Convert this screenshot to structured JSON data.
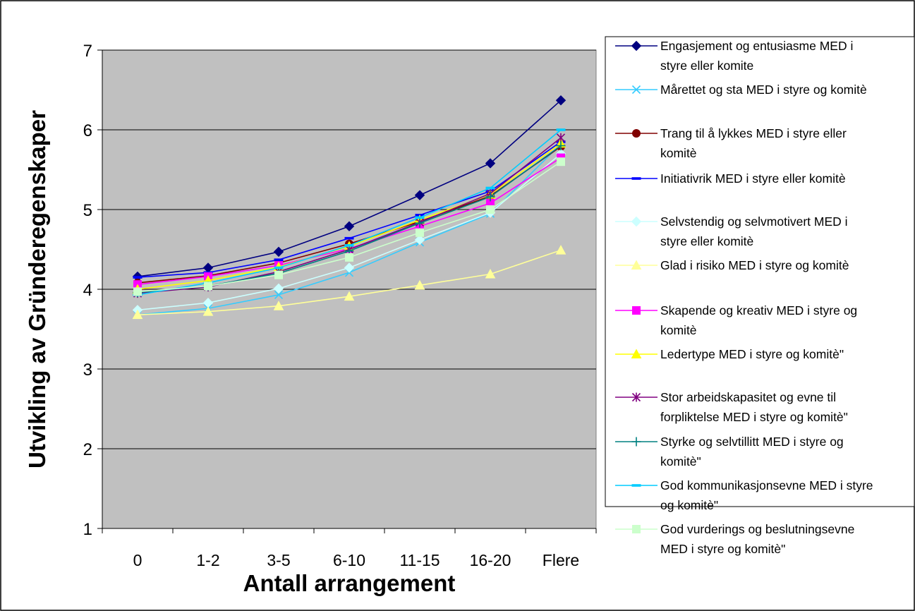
{
  "chart_data": {
    "type": "line",
    "xlabel": "Antall arrangement",
    "ylabel": "Utvikling av Gründeregenskaper",
    "categories": [
      "0",
      "1-2",
      "3-5",
      "6-10",
      "11-15",
      "16-20",
      "Flere"
    ],
    "ylim": [
      1,
      7
    ],
    "yticks": [
      1,
      2,
      3,
      4,
      5,
      6,
      7
    ],
    "grid": "horizontal",
    "plot_background": "#c0c0c0",
    "legend_position": "right",
    "series": [
      {
        "name": "Engasjement og entusiasme MED i styre eller komite",
        "label_lines": [
          "Engasjement og entusiasme MED i",
          "styre eller komite"
        ],
        "color": "#000080",
        "marker": "diamond",
        "values": [
          4.16,
          4.27,
          4.47,
          4.79,
          5.18,
          5.58,
          6.37
        ]
      },
      {
        "name": "Mårettet og sta MED i styre og komitè",
        "label_lines": [
          "Mårettet og sta MED i styre og komitè"
        ],
        "color": "#33ccff",
        "marker": "x",
        "values": [
          3.68,
          3.76,
          3.93,
          4.21,
          4.59,
          4.95,
          5.82
        ]
      },
      {
        "name": "Trang til å lykkes MED i styre eller komitè",
        "label_lines": [
          "Trang til å lykkes MED i styre eller",
          "komitè"
        ],
        "color": "#800000",
        "marker": "circle",
        "values": [
          4.08,
          4.17,
          4.33,
          4.57,
          4.85,
          5.17,
          5.79
        ]
      },
      {
        "name": "Initiativrik MED i styre eller komitè",
        "label_lines": [
          "Initiativrik MED i styre eller komitè"
        ],
        "color": "#0000ff",
        "marker": "dash",
        "values": [
          4.15,
          4.21,
          4.37,
          4.64,
          4.93,
          5.23,
          5.85
        ]
      },
      {
        "name": "Selvstendig og selvmotivert MED i styre eller komitè",
        "label_lines": [
          "Selvstendig og selvmotivert MED i",
          "styre eller komitè"
        ],
        "color": "#ccffff",
        "marker": "diamond",
        "values": [
          3.74,
          3.83,
          4.01,
          4.27,
          4.62,
          4.96,
          5.7
        ]
      },
      {
        "name": "Glad i risiko MED i styre og komitè",
        "label_lines": [
          "Glad i risiko MED i styre og komitè"
        ],
        "color": "#ffff99",
        "marker": "triangle",
        "values": [
          3.68,
          3.72,
          3.79,
          3.91,
          4.05,
          4.19,
          4.49
        ]
      },
      {
        "name": "Skapende og kreativ MED i styre og komitè",
        "label_lines": [
          "Skapende og kreativ MED i styre og",
          "komitè"
        ],
        "color": "#ff00ff",
        "marker": "square",
        "values": [
          4.06,
          4.16,
          4.3,
          4.51,
          4.79,
          5.08,
          5.65
        ]
      },
      {
        "name": "Ledertype MED i styre og komitè\"",
        "label_lines": [
          "Ledertype MED i styre og komitè\""
        ],
        "color": "#ffff00",
        "marker": "triangle",
        "values": [
          4.0,
          4.11,
          4.28,
          4.54,
          4.87,
          5.19,
          5.83
        ]
      },
      {
        "name": "Stor arbeidskapasitet og evne til forpliktelse MED i styre og komitè\"",
        "label_lines": [
          "Stor arbeidskapasitet og evne til",
          "forpliktelse MED i styre og komitè\""
        ],
        "color": "#800080",
        "marker": "star",
        "values": [
          3.95,
          4.03,
          4.22,
          4.5,
          4.84,
          5.2,
          5.9
        ]
      },
      {
        "name": "Styrke og selvtillitt MED i styre og komitè\"",
        "label_lines": [
          "Styrke og selvtillitt MED i styre og",
          "komitè\""
        ],
        "color": "#008080",
        "marker": "plus",
        "values": [
          3.96,
          4.04,
          4.2,
          4.48,
          4.83,
          5.16,
          5.8
        ]
      },
      {
        "name": "God kommunikasjonsevne MED i styre og komitè\"",
        "label_lines": [
          "God kommunikasjonsevne MED i styre",
          "og komitè\""
        ],
        "color": "#00ccff",
        "marker": "dash",
        "values": [
          3.93,
          4.08,
          4.27,
          4.55,
          4.9,
          5.27,
          6.0
        ]
      },
      {
        "name": "God vurderings og beslutningsevne MED i styre og komitè\"",
        "label_lines": [
          "God vurderings og beslutningsevne",
          "MED i styre og komitè\""
        ],
        "color": "#ccffcc",
        "marker": "square",
        "values": [
          3.97,
          4.04,
          4.18,
          4.4,
          4.71,
          5.0,
          5.6
        ]
      }
    ]
  }
}
